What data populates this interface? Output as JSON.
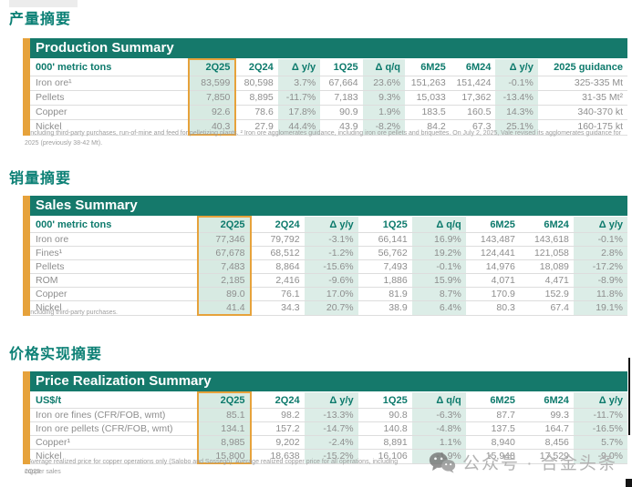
{
  "watermark": {
    "text": "公众号 · 合金头条"
  },
  "sections": [
    {
      "heading": "产量摘要",
      "table": {
        "title": "Production Summary",
        "unit": "000' metric tons",
        "columns": [
          "2Q25",
          "2Q24",
          "Δ y/y",
          "1Q25",
          "Δ q/q",
          "6M25",
          "6M24",
          "Δ y/y",
          "2025 guidance"
        ],
        "highlight": 0,
        "shaded": [
          2,
          4,
          7
        ],
        "rows": [
          {
            "label": "Iron ore¹",
            "indent": false,
            "values": [
              "83,599",
              "80,598",
              "3.7%",
              "67,664",
              "23.6%",
              "151,263",
              "151,424",
              "-0.1%",
              "325-335 Mt"
            ]
          },
          {
            "label": "Pellets",
            "indent": false,
            "values": [
              "7,850",
              "8,895",
              "-11.7%",
              "7,183",
              "9.3%",
              "15,033",
              "17,362",
              "-13.4%",
              "31-35 Mt²"
            ]
          },
          {
            "label": "Copper",
            "indent": false,
            "values": [
              "92.6",
              "78.6",
              "17.8%",
              "90.9",
              "1.9%",
              "183.5",
              "160.5",
              "14.3%",
              "340-370 kt"
            ]
          },
          {
            "label": "Nickel",
            "indent": false,
            "values": [
              "40.3",
              "27.9",
              "44.4%",
              "43.9",
              "-8.2%",
              "84.2",
              "67.3",
              "25.1%",
              "160-175 kt"
            ]
          }
        ],
        "footnote": "¹ Including third-party purchases, run-of-mine and feed for pelletizing plants. ² Iron ore agglomerates guidance, including iron ore pellets and briquettes. On July 2, 2025, Vale revised its agglomerates guidance for 2025 (previously 38-42 Mt).",
        "footnote2": ""
      }
    },
    {
      "heading": "销量摘要",
      "table": {
        "title": "Sales Summary",
        "unit": "000' metric tons",
        "columns": [
          "2Q25",
          "2Q24",
          "Δ y/y",
          "1Q25",
          "Δ q/q",
          "6M25",
          "6M24",
          "Δ y/y"
        ],
        "highlight": 0,
        "shaded": [
          2,
          4,
          7
        ],
        "rows": [
          {
            "label": "Iron ore",
            "indent": false,
            "values": [
              "77,346",
              "79,792",
              "-3.1%",
              "66,141",
              "16.9%",
              "143,487",
              "143,618",
              "-0.1%"
            ]
          },
          {
            "label": "Fines¹",
            "indent": true,
            "values": [
              "67,678",
              "68,512",
              "-1.2%",
              "56,762",
              "19.2%",
              "124,441",
              "121,058",
              "2.8%"
            ]
          },
          {
            "label": "Pellets",
            "indent": true,
            "values": [
              "7,483",
              "8,864",
              "-15.6%",
              "7,493",
              "-0.1%",
              "14,976",
              "18,089",
              "-17.2%"
            ]
          },
          {
            "label": "ROM",
            "indent": true,
            "values": [
              "2,185",
              "2,416",
              "-9.6%",
              "1,886",
              "15.9%",
              "4,071",
              "4,471",
              "-8.9%"
            ]
          },
          {
            "label": "Copper",
            "indent": false,
            "values": [
              "89.0",
              "76.1",
              "17.0%",
              "81.9",
              "8.7%",
              "170.9",
              "152.9",
              "11.8%"
            ]
          },
          {
            "label": "Nickel",
            "indent": false,
            "values": [
              "41.4",
              "34.3",
              "20.7%",
              "38.9",
              "6.4%",
              "80.3",
              "67.4",
              "19.1%"
            ]
          }
        ],
        "footnote": "¹ Including third-party purchases.",
        "footnote2": ""
      }
    },
    {
      "heading": "价格实现摘要",
      "table": {
        "title": "Price Realization Summary",
        "unit": "US$/t",
        "columns": [
          "2Q25",
          "2Q24",
          "Δ y/y",
          "1Q25",
          "Δ q/q",
          "6M25",
          "6M24",
          "Δ y/y"
        ],
        "highlight": 0,
        "shaded": [
          2,
          4,
          7
        ],
        "rows": [
          {
            "label": "Iron ore fines (CFR/FOB, wmt)",
            "indent": false,
            "values": [
              "85.1",
              "98.2",
              "-13.3%",
              "90.8",
              "-6.3%",
              "87.7",
              "99.3",
              "-11.7%"
            ]
          },
          {
            "label": "Iron ore pellets (CFR/FOB, wmt)",
            "indent": false,
            "values": [
              "134.1",
              "157.2",
              "-14.7%",
              "140.8",
              "-4.8%",
              "137.5",
              "164.7",
              "-16.5%"
            ]
          },
          {
            "label": "Copper¹",
            "indent": false,
            "values": [
              "8,985",
              "9,202",
              "-2.4%",
              "8,891",
              "1.1%",
              "8,940",
              "8,456",
              "5.7%"
            ]
          },
          {
            "label": "Nickel",
            "indent": false,
            "values": [
              "15,800",
              "18,638",
              "-15.2%",
              "16,106",
              "-1.9%",
              "15,948",
              "17,529",
              "-9.0%"
            ]
          }
        ],
        "footnote": "¹ Average realized price for copper operations only (Salobo and Sossego). Average realized copper price for all operations, including copper sales",
        "footnote2": "2Q25."
      }
    }
  ]
}
